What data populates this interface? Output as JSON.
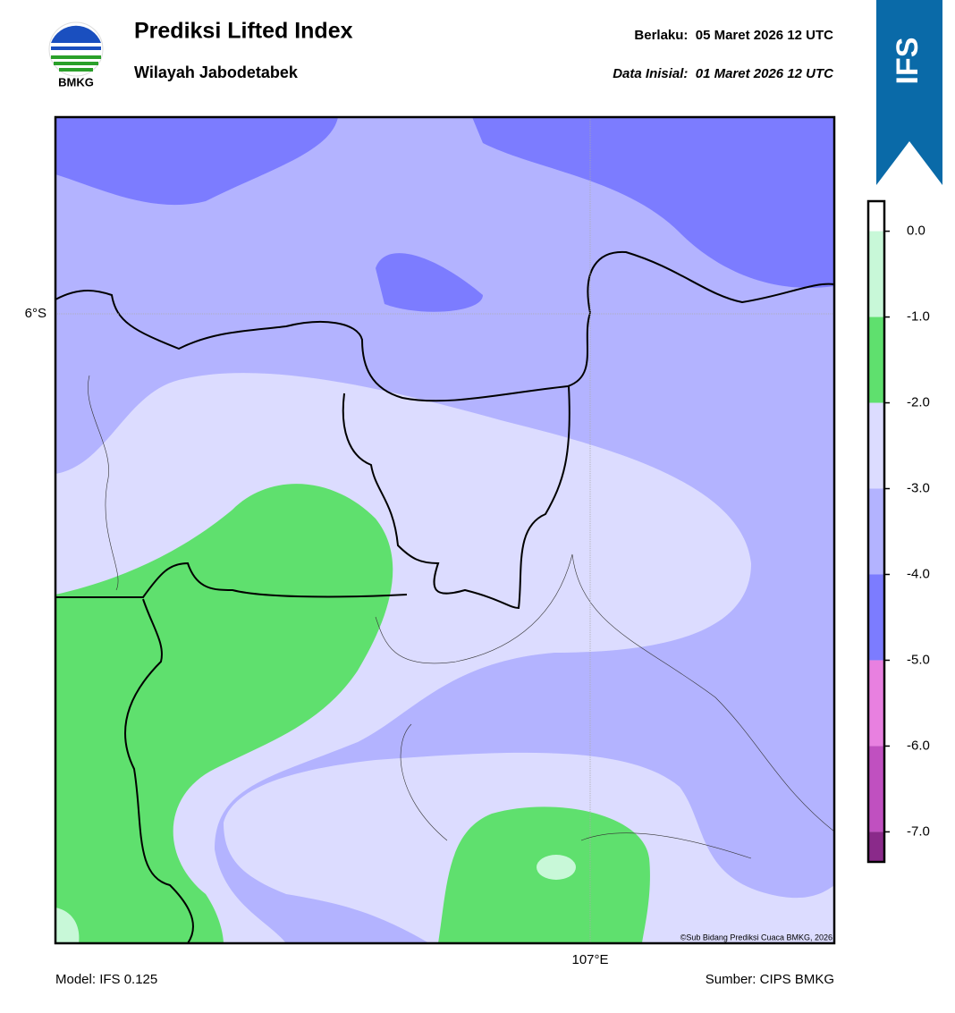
{
  "header": {
    "logo_text": "BMKG",
    "title": "Prediksi Lifted Index",
    "subtitle": "Wilayah Jabodetabek",
    "valid": "Berlaku:  05 Maret 2026 12 UTC",
    "initial": "Data Inisial:  01 Maret 2026 12 UTC",
    "model_badge": "IFS"
  },
  "map": {
    "lat_label": "6°S",
    "lon_label": "107°E",
    "credit": "©Sub Bidang Prediksi Cuaca BMKG, 2026"
  },
  "colorbar": {
    "range": [
      -7.35,
      0.35
    ],
    "bands": [
      {
        "from": 0,
        "to": 0.35,
        "color": "#ffffff"
      },
      {
        "from": -1,
        "to": 0,
        "color": "#c8f8d8"
      },
      {
        "from": -2,
        "to": -1,
        "color": "#5fe06e"
      },
      {
        "from": -3,
        "to": -2,
        "color": "#dcdcff"
      },
      {
        "from": -4,
        "to": -3,
        "color": "#b3b3ff"
      },
      {
        "from": -5,
        "to": -4,
        "color": "#7c7cff"
      },
      {
        "from": -6,
        "to": -5,
        "color": "#e880e0"
      },
      {
        "from": -7,
        "to": -6,
        "color": "#c050c0"
      },
      {
        "from": -7.35,
        "to": -7,
        "color": "#8a2a8a"
      }
    ],
    "ticks": [
      {
        "value": 0,
        "label": "0.0"
      },
      {
        "value": -1,
        "label": "-1.0"
      },
      {
        "value": -2,
        "label": "-2.0"
      },
      {
        "value": -3,
        "label": "-3.0"
      },
      {
        "value": -4,
        "label": "-4.0"
      },
      {
        "value": -5,
        "label": "-5.0"
      },
      {
        "value": -6,
        "label": "-6.0"
      },
      {
        "value": -7,
        "label": "-7.0"
      }
    ]
  },
  "footer": {
    "model": "Model: IFS 0.125",
    "source": "Sumber: CIPS BMKG"
  }
}
